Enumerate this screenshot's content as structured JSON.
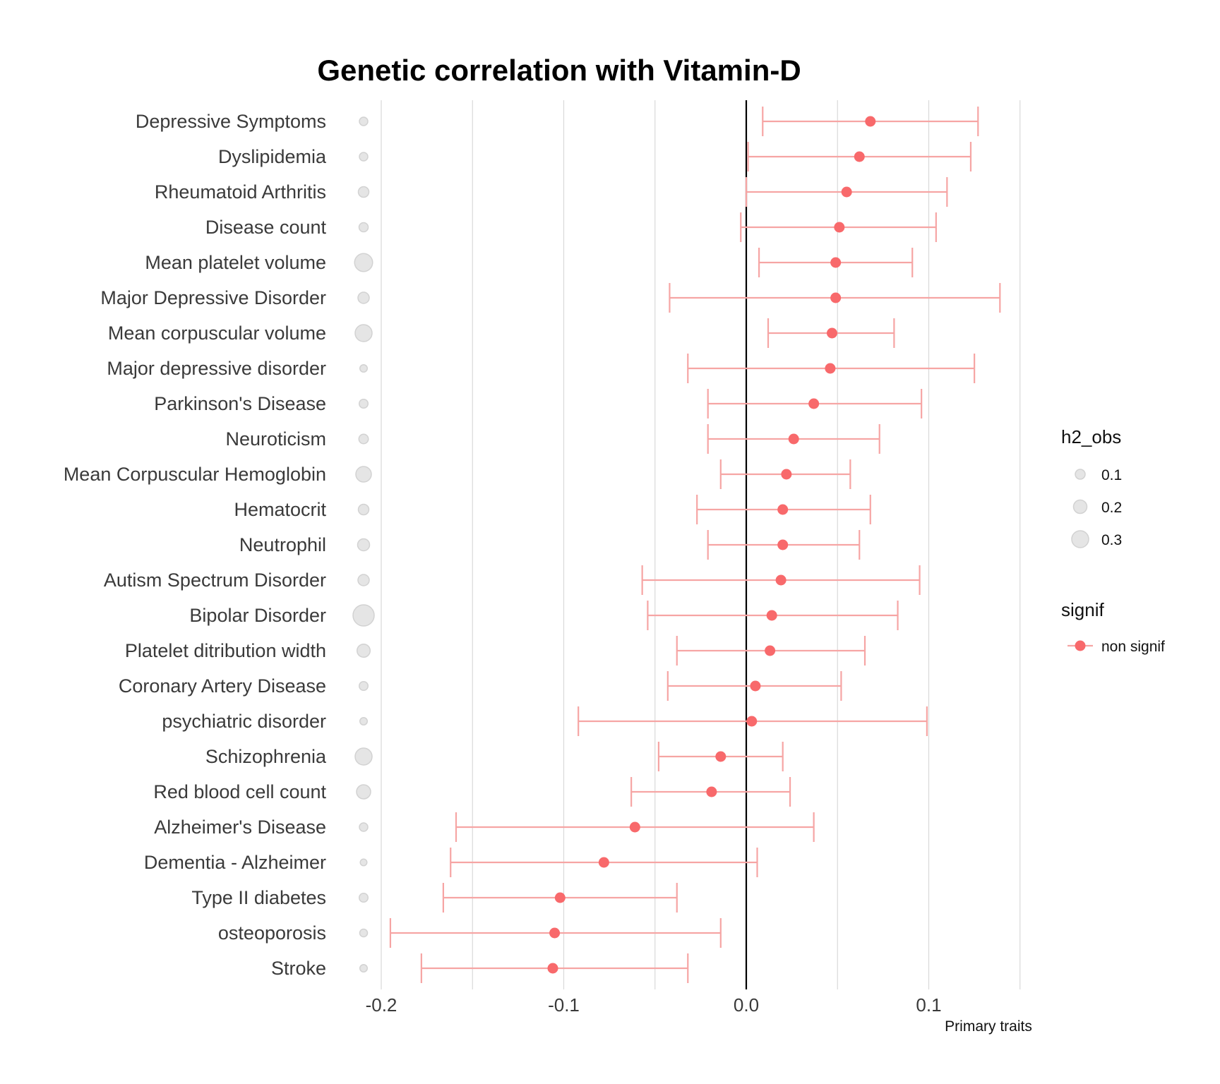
{
  "colors": {
    "point": "#F8696B",
    "errorbar": "#F6A5A4",
    "zero_line": "#000000",
    "gridline": "#D9D9D9",
    "size_circle_fill": "#E5E5E5",
    "size_circle_stroke": "#D2D2D2",
    "title": "#000000",
    "label": "#3A3A3A"
  },
  "chart_data": {
    "type": "forest",
    "title": "Genetic correlation with Vitamin-D",
    "xlabel": "Primary traits",
    "ylabel": "",
    "xlim": [
      -0.2,
      0.15
    ],
    "x_ticks": [
      -0.2,
      -0.1,
      0.0,
      0.1
    ],
    "x_tick_labels": [
      "-0.2",
      "-0.1",
      "0.0",
      "0.1"
    ],
    "gridlines": [
      -0.2,
      -0.15,
      -0.1,
      -0.05,
      0.0,
      0.05,
      0.1,
      0.15
    ],
    "reference_line": 0.0,
    "grid": true,
    "legend_position": "right",
    "legend": {
      "size": {
        "title": "h2_obs",
        "entries": [
          {
            "label": "0.1",
            "value": 0.1
          },
          {
            "label": "0.2",
            "value": 0.2
          },
          {
            "label": "0.3",
            "value": 0.3
          }
        ]
      },
      "color": {
        "title": "signif",
        "entries": [
          {
            "label": "non signif"
          }
        ]
      }
    },
    "rows": [
      {
        "trait": "Depressive Symptoms",
        "rg": 0.068,
        "lo": 0.009,
        "hi": 0.127,
        "h2_obs": 0.06,
        "signif": "non signif"
      },
      {
        "trait": "Dyslipidemia",
        "rg": 0.062,
        "lo": 0.001,
        "hi": 0.123,
        "h2_obs": 0.06,
        "signif": "non signif"
      },
      {
        "trait": "Rheumatoid Arthritis",
        "rg": 0.055,
        "lo": 0.0,
        "hi": 0.11,
        "h2_obs": 0.12,
        "signif": "non signif"
      },
      {
        "trait": "Disease count",
        "rg": 0.051,
        "lo": -0.003,
        "hi": 0.104,
        "h2_obs": 0.08,
        "signif": "non signif"
      },
      {
        "trait": "Mean platelet volume ",
        "rg": 0.049,
        "lo": 0.007,
        "hi": 0.091,
        "h2_obs": 0.33,
        "signif": "non signif"
      },
      {
        "trait": "Major Depressive Disorder",
        "rg": 0.049,
        "lo": -0.042,
        "hi": 0.139,
        "h2_obs": 0.14,
        "signif": "non signif"
      },
      {
        "trait": "Mean corpuscular volume",
        "rg": 0.047,
        "lo": 0.012,
        "hi": 0.081,
        "h2_obs": 0.3,
        "signif": "non signif"
      },
      {
        "trait": "Major depressive disorder",
        "rg": 0.046,
        "lo": -0.032,
        "hi": 0.125,
        "h2_obs": 0.03,
        "signif": "non signif"
      },
      {
        "trait": "Parkinson's Disease",
        "rg": 0.037,
        "lo": -0.021,
        "hi": 0.096,
        "h2_obs": 0.07,
        "signif": "non signif"
      },
      {
        "trait": "Neuroticism",
        "rg": 0.026,
        "lo": -0.021,
        "hi": 0.073,
        "h2_obs": 0.09,
        "signif": "non signif"
      },
      {
        "trait": "Mean Corpuscular Hemoglobin",
        "rg": 0.022,
        "lo": -0.014,
        "hi": 0.057,
        "h2_obs": 0.26,
        "signif": "non signif"
      },
      {
        "trait": "Hematocrit",
        "rg": 0.02,
        "lo": -0.027,
        "hi": 0.068,
        "h2_obs": 0.12,
        "signif": "non signif"
      },
      {
        "trait": "Neutrophil",
        "rg": 0.02,
        "lo": -0.021,
        "hi": 0.062,
        "h2_obs": 0.16,
        "signif": "non signif"
      },
      {
        "trait": "Autism Spectrum Disorder",
        "rg": 0.019,
        "lo": -0.057,
        "hi": 0.095,
        "h2_obs": 0.14,
        "signif": "non signif"
      },
      {
        "trait": "Bipolar Disorder",
        "rg": 0.014,
        "lo": -0.054,
        "hi": 0.083,
        "h2_obs": 0.42,
        "signif": "non signif"
      },
      {
        "trait": "Platelet ditribution width",
        "rg": 0.013,
        "lo": -0.038,
        "hi": 0.065,
        "h2_obs": 0.19,
        "signif": "non signif"
      },
      {
        "trait": "Coronary Artery Disease",
        "rg": 0.005,
        "lo": -0.043,
        "hi": 0.052,
        "h2_obs": 0.07,
        "signif": "non signif"
      },
      {
        "trait": "psychiatric disorder",
        "rg": 0.003,
        "lo": -0.092,
        "hi": 0.099,
        "h2_obs": 0.03,
        "signif": "non signif"
      },
      {
        "trait": "Schizophrenia",
        "rg": -0.014,
        "lo": -0.048,
        "hi": 0.02,
        "h2_obs": 0.3,
        "signif": "non signif"
      },
      {
        "trait": "Red blood cell count",
        "rg": -0.019,
        "lo": -0.063,
        "hi": 0.024,
        "h2_obs": 0.22,
        "signif": "non signif"
      },
      {
        "trait": "Alzheimer's Disease",
        "rg": -0.061,
        "lo": -0.159,
        "hi": 0.037,
        "h2_obs": 0.06,
        "signif": "non signif"
      },
      {
        "trait": "Dementia - Alzheimer",
        "rg": -0.078,
        "lo": -0.162,
        "hi": 0.006,
        "h2_obs": 0.01,
        "signif": "non signif"
      },
      {
        "trait": "Type II diabetes",
        "rg": -0.102,
        "lo": -0.166,
        "hi": -0.038,
        "h2_obs": 0.07,
        "signif": "non signif"
      },
      {
        "trait": "osteoporosis",
        "rg": -0.105,
        "lo": -0.195,
        "hi": -0.014,
        "h2_obs": 0.04,
        "signif": "non signif"
      },
      {
        "trait": "Stroke",
        "rg": -0.106,
        "lo": -0.178,
        "hi": -0.032,
        "h2_obs": 0.03,
        "signif": "non signif"
      }
    ]
  }
}
